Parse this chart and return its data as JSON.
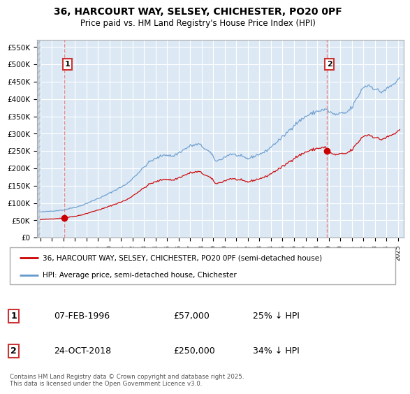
{
  "title_line1": "36, HARCOURT WAY, SELSEY, CHICHESTER, PO20 0PF",
  "title_line2": "Price paid vs. HM Land Registry's House Price Index (HPI)",
  "ylim": [
    0,
    570000
  ],
  "xlim_start": 1993.7,
  "xlim_end": 2025.5,
  "yticks": [
    0,
    50000,
    100000,
    150000,
    200000,
    250000,
    300000,
    350000,
    400000,
    450000,
    500000,
    550000
  ],
  "ytick_labels": [
    "£0",
    "£50K",
    "£100K",
    "£150K",
    "£200K",
    "£250K",
    "£300K",
    "£350K",
    "£400K",
    "£450K",
    "£500K",
    "£550K"
  ],
  "bg_color": "#dce9f5",
  "hatch_bg_color": "#c8d5e3",
  "grid_color": "#ffffff",
  "red_line_color": "#cc0000",
  "blue_line_color": "#6699cc",
  "dashed_line_color": "#e87878",
  "marker1_x": 1996.09,
  "marker1_y": 57000,
  "marker2_x": 2018.82,
  "marker2_y": 250000,
  "sale1_date": "07-FEB-1996",
  "sale1_price": "£57,000",
  "sale1_hpi": "25% ↓ HPI",
  "sale2_date": "24-OCT-2018",
  "sale2_price": "£250,000",
  "sale2_hpi": "34% ↓ HPI",
  "legend_line1": "36, HARCOURT WAY, SELSEY, CHICHESTER, PO20 0PF (semi-detached house)",
  "legend_line2": "HPI: Average price, semi-detached house, Chichester",
  "footer": "Contains HM Land Registry data © Crown copyright and database right 2025.\nThis data is licensed under the Open Government Licence v3.0."
}
